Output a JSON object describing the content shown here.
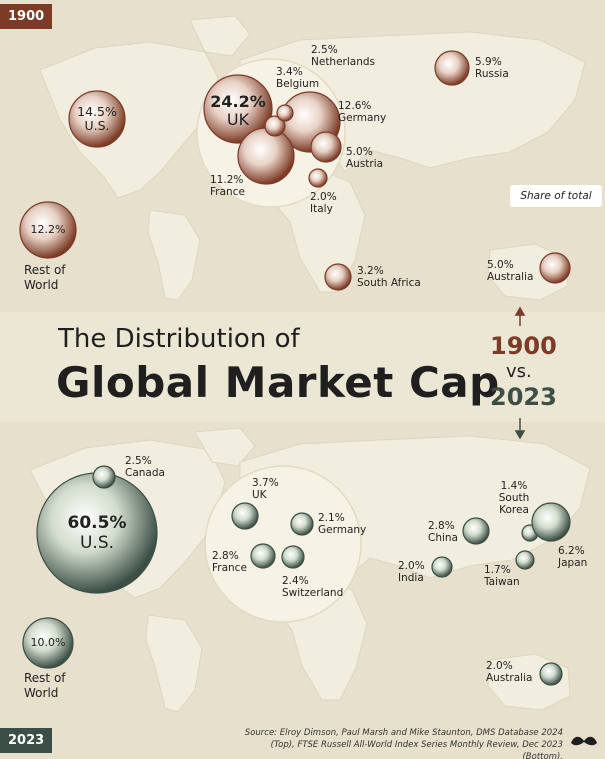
{
  "title": {
    "line1": "The Distribution of",
    "line2": "Global Market Cap"
  },
  "comparison": {
    "year_a": "1900",
    "vs": "vs.",
    "year_b": "2023"
  },
  "panels": {
    "top_tag": "1900",
    "bottom_tag": "2023"
  },
  "annotation": "Share of total",
  "source": "Source: Elroy Dimson, Paul Marsh and Mike Staunton, DMS Database 2024 (Top), FTSE Russell All-World Index Series Monthly Review, Dec 2023 (Bottom).",
  "colors": {
    "y1900": "#7b3b26",
    "y2023": "#3c4f46",
    "land": "#f2eedf",
    "background": "#e7e0cd"
  },
  "markets_1900": [
    {
      "name": "U.S.",
      "value": "14.5%",
      "share": 14.5
    },
    {
      "name": "UK",
      "value": "24.2%",
      "share": 24.2
    },
    {
      "name": "Belgium",
      "value": "3.4%",
      "share": 3.4
    },
    {
      "name": "Netherlands",
      "value": "2.5%",
      "share": 2.5
    },
    {
      "name": "Germany",
      "value": "12.6%",
      "share": 12.6
    },
    {
      "name": "Austria",
      "value": "5.0%",
      "share": 5.0
    },
    {
      "name": "France",
      "value": "11.2%",
      "share": 11.2
    },
    {
      "name": "Italy",
      "value": "2.0%",
      "share": 2.0
    },
    {
      "name": "Russia",
      "value": "5.9%",
      "share": 5.9
    },
    {
      "name": "Rest of World",
      "value": "12.2%",
      "share": 12.2
    },
    {
      "name": "South Africa",
      "value": "3.2%",
      "share": 3.2
    },
    {
      "name": "Australia",
      "value": "5.0%",
      "share": 5.0
    }
  ],
  "markets_2023": [
    {
      "name": "U.S.",
      "value": "60.5%",
      "share": 60.5
    },
    {
      "name": "Canada",
      "value": "2.5%",
      "share": 2.5
    },
    {
      "name": "UK",
      "value": "3.7%",
      "share": 3.7
    },
    {
      "name": "Germany",
      "value": "2.1%",
      "share": 2.1
    },
    {
      "name": "France",
      "value": "2.8%",
      "share": 2.8
    },
    {
      "name": "Switzerland",
      "value": "2.4%",
      "share": 2.4
    },
    {
      "name": "China",
      "value": "2.8%",
      "share": 2.8
    },
    {
      "name": "South Korea",
      "value": "1.4%",
      "share": 1.4
    },
    {
      "name": "Japan",
      "value": "6.2%",
      "share": 6.2
    },
    {
      "name": "India",
      "value": "2.0%",
      "share": 2.0
    },
    {
      "name": "Taiwan",
      "value": "1.7%",
      "share": 1.7
    },
    {
      "name": "Rest of World",
      "value": "10.0%",
      "share": 10.0
    },
    {
      "name": "Australia",
      "value": "2.0%",
      "share": 2.0
    }
  ]
}
